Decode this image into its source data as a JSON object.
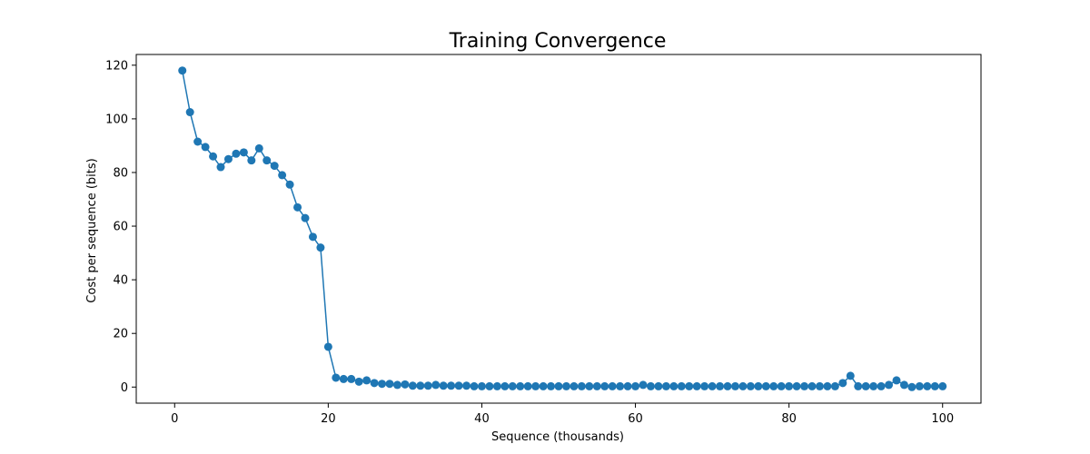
{
  "chart_data": {
    "type": "line",
    "title": "Training Convergence",
    "xlabel": "Sequence (thousands)",
    "ylabel": "Cost per sequence (bits)",
    "xlim": [
      -5,
      105
    ],
    "ylim": [
      -6,
      124
    ],
    "xticks": [
      0,
      20,
      40,
      60,
      80,
      100
    ],
    "yticks": [
      0,
      20,
      40,
      60,
      80,
      100,
      120
    ],
    "grid": false,
    "marker": "circle",
    "color": "#1f77b4",
    "series": [
      {
        "x": [
          1,
          2,
          3,
          4,
          5,
          6,
          7,
          8,
          9,
          10,
          11,
          12,
          13,
          14,
          15,
          16,
          17,
          18,
          19,
          20,
          21,
          22,
          23,
          24,
          25,
          26,
          27,
          28,
          29,
          30,
          31,
          32,
          33,
          34,
          35,
          36,
          37,
          38,
          39,
          40,
          41,
          42,
          43,
          44,
          45,
          46,
          47,
          48,
          49,
          50,
          51,
          52,
          53,
          54,
          55,
          56,
          57,
          58,
          59,
          60,
          61,
          62,
          63,
          64,
          65,
          66,
          67,
          68,
          69,
          70,
          71,
          72,
          73,
          74,
          75,
          76,
          77,
          78,
          79,
          80,
          81,
          82,
          83,
          84,
          85,
          86,
          87,
          88,
          89,
          90,
          91,
          92,
          93,
          94,
          95,
          96,
          97,
          98,
          99,
          100
        ],
        "y": [
          118,
          102.5,
          91.5,
          89.5,
          86,
          82,
          85,
          87,
          87.5,
          84.5,
          89,
          84.5,
          82.5,
          79,
          75.5,
          67,
          63,
          56,
          52,
          15,
          3.5,
          3,
          3,
          2,
          2.5,
          1.5,
          1.2,
          1.2,
          0.8,
          1,
          0.5,
          0.5,
          0.5,
          0.8,
          0.5,
          0.5,
          0.5,
          0.5,
          0.3,
          0.3,
          0.3,
          0.3,
          0.3,
          0.3,
          0.3,
          0.3,
          0.3,
          0.3,
          0.3,
          0.3,
          0.3,
          0.3,
          0.3,
          0.3,
          0.3,
          0.3,
          0.3,
          0.3,
          0.3,
          0.3,
          0.8,
          0.3,
          0.3,
          0.3,
          0.3,
          0.3,
          0.3,
          0.3,
          0.3,
          0.3,
          0.3,
          0.3,
          0.3,
          0.3,
          0.3,
          0.3,
          0.3,
          0.3,
          0.3,
          0.3,
          0.3,
          0.3,
          0.3,
          0.3,
          0.3,
          0.3,
          1.5,
          4.2,
          0.3,
          0.3,
          0.3,
          0.3,
          0.8,
          2.5,
          0.8,
          0,
          0.3,
          0.3,
          0.3,
          0.3
        ]
      }
    ]
  }
}
